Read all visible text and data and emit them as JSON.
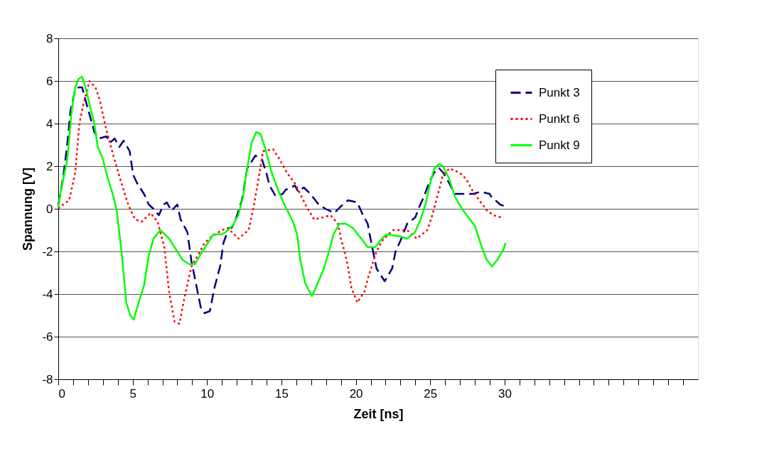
{
  "chart_data": {
    "type": "line",
    "xlabel": "Zeit [ns]",
    "ylabel": "Spannung [V]",
    "xlim": [
      0,
      43
    ],
    "xticks": [
      0,
      {
        "value": 1,
        "label": null
      },
      {
        "value": 2,
        "label": null
      },
      {
        "value": 3,
        "label": null
      },
      {
        "value": 4,
        "label": null
      },
      5,
      {
        "value": 6,
        "label": null
      },
      {
        "value": 7,
        "label": null
      },
      {
        "value": 8,
        "label": null
      },
      {
        "value": 9,
        "label": null
      },
      10,
      {
        "value": 11,
        "label": null
      },
      {
        "value": 12,
        "label": null
      },
      {
        "value": 13,
        "label": null
      },
      {
        "value": 14,
        "label": null
      },
      15,
      {
        "value": 16,
        "label": null
      },
      {
        "value": 17,
        "label": null
      },
      {
        "value": 18,
        "label": null
      },
      {
        "value": 19,
        "label": null
      },
      20,
      {
        "value": 21,
        "label": null
      },
      {
        "value": 22,
        "label": null
      },
      {
        "value": 23,
        "label": null
      },
      {
        "value": 24,
        "label": null
      },
      25,
      {
        "value": 26,
        "label": null
      },
      {
        "value": 27,
        "label": null
      },
      {
        "value": 28,
        "label": null
      },
      {
        "value": 29,
        "label": null
      },
      30,
      {
        "value": 31,
        "label": null
      },
      {
        "value": 32,
        "label": null
      },
      {
        "value": 33,
        "label": null
      },
      {
        "value": 34,
        "label": null
      },
      {
        "value": 35,
        "label": null
      },
      {
        "value": 36,
        "label": null
      },
      {
        "value": 37,
        "label": null
      },
      {
        "value": 38,
        "label": null
      },
      {
        "value": 39,
        "label": null
      },
      {
        "value": 40,
        "label": null
      },
      {
        "value": 41,
        "label": null
      },
      {
        "value": 42,
        "label": null
      }
    ],
    "ylim": [
      -8,
      8
    ],
    "yticks": [
      -8,
      -6,
      -4,
      -2,
      0,
      2,
      4,
      6,
      8
    ],
    "grid": "y",
    "legend": "top right",
    "marker": "none",
    "series": [
      {
        "name": "Punkt 3",
        "color": "#000080",
        "line_style": "dashed",
        "x": [
          0,
          0.14,
          0.37,
          0.6,
          0.82,
          1.14,
          1.37,
          1.6,
          1.83,
          2.19,
          2.42,
          2.74,
          3.24,
          3.47,
          3.79,
          4.1,
          4.39,
          4.8,
          5.03,
          5.3,
          5.76,
          6.08,
          6.4,
          6.76,
          7.08,
          7.3,
          7.6,
          8.0,
          8.22,
          8.68,
          8.96,
          9.28,
          9.6,
          9.83,
          10.19,
          10.5,
          10.88,
          11.1,
          11.47,
          11.65,
          11.93,
          12.34,
          12.7,
          13.25,
          13.7,
          13.98,
          14.2,
          14.6,
          15.08,
          15.3,
          15.68,
          15.9,
          16.13,
          16.5,
          16.95,
          17.5,
          17.96,
          18.55,
          18.97,
          19.47,
          20.1,
          20.48,
          20.8,
          20.93,
          21.16,
          21.39,
          21.94,
          22.44,
          22.67,
          23.0,
          23.45,
          24.0,
          24.27,
          24.6,
          24.9,
          25.27,
          25.6,
          25.87,
          26.28,
          26.64,
          27.24,
          27.88,
          28.38,
          29.0,
          29.07,
          29.7,
          30.07
        ],
        "values": [
          0.2,
          0.7,
          1.7,
          3.0,
          4.6,
          5.6,
          5.7,
          5.7,
          5.1,
          4.2,
          3.6,
          3.3,
          3.4,
          3.1,
          3.3,
          2.9,
          3.2,
          2.7,
          1.6,
          1.2,
          0.7,
          0.2,
          0.0,
          -0.3,
          0.2,
          0.3,
          -0.1,
          0.2,
          -0.5,
          -1.1,
          -2.5,
          -3.6,
          -4.7,
          -4.9,
          -4.8,
          -3.7,
          -2.7,
          -1.6,
          -0.9,
          -0.9,
          -0.5,
          0.4,
          1.9,
          2.5,
          2.3,
          1.7,
          1.1,
          0.6,
          0.7,
          0.9,
          1.0,
          1.1,
          0.8,
          1.0,
          0.7,
          0.2,
          0.0,
          -0.2,
          0.1,
          0.4,
          0.3,
          -0.3,
          -0.7,
          -1.2,
          -2.0,
          -2.8,
          -3.4,
          -2.8,
          -2.0,
          -1.5,
          -0.7,
          -0.4,
          0.1,
          0.6,
          1.2,
          1.7,
          1.9,
          1.7,
          1.2,
          0.7,
          0.7,
          0.7,
          0.8,
          0.7,
          0.6,
          0.2,
          0.1
        ]
      },
      {
        "name": "Punkt 6",
        "color": "#ff0000",
        "line_style": "dotted",
        "x": [
          0,
          0.14,
          0.73,
          1.14,
          1.42,
          1.65,
          2.1,
          2.5,
          2.79,
          3.2,
          3.7,
          4.16,
          4.7,
          5.16,
          5.62,
          6.2,
          6.67,
          7.13,
          7.45,
          7.82,
          8.14,
          8.5,
          8.96,
          9.37,
          9.83,
          10.33,
          11.0,
          11.4,
          12.1,
          12.8,
          13.16,
          13.48,
          13.76,
          14.44,
          14.9,
          15.36,
          15.9,
          16.27,
          16.68,
          17.2,
          17.82,
          18.3,
          18.8,
          19.0,
          19.24,
          19.47,
          19.7,
          20.1,
          20.57,
          20.84,
          21.16,
          21.39,
          21.76,
          22.5,
          23.45,
          24.1,
          24.8,
          25.1,
          25.37,
          25.6,
          25.82,
          26.28,
          26.96,
          27.42,
          27.8,
          28.3,
          28.84,
          29.25,
          29.75
        ],
        "values": [
          0.0,
          0.1,
          0.4,
          1.7,
          4.0,
          4.8,
          6.0,
          5.7,
          5.1,
          3.8,
          2.5,
          1.4,
          0.2,
          -0.5,
          -0.6,
          -0.2,
          -0.6,
          -1.8,
          -3.9,
          -5.3,
          -5.4,
          -4.1,
          -2.7,
          -2.2,
          -1.6,
          -1.3,
          -1.0,
          -0.9,
          -1.4,
          -1.0,
          0.2,
          1.5,
          2.7,
          2.8,
          2.3,
          1.7,
          1.2,
          0.7,
          0.1,
          -0.5,
          -0.4,
          -0.3,
          -0.7,
          -1.4,
          -2.0,
          -2.7,
          -3.7,
          -4.4,
          -3.9,
          -3.2,
          -2.5,
          -2.0,
          -1.5,
          -1.0,
          -1.0,
          -1.4,
          -1.0,
          -0.4,
          0.3,
          0.9,
          1.5,
          1.9,
          1.7,
          1.4,
          0.9,
          0.4,
          -0.1,
          -0.3,
          -0.4
        ]
      },
      {
        "name": "Punkt 9",
        "color": "#00ff00",
        "line_style": "solid",
        "x": [
          0,
          0.14,
          0.6,
          0.9,
          1.14,
          1.37,
          1.6,
          1.83,
          2.1,
          2.42,
          2.65,
          2.97,
          3.34,
          3.7,
          3.93,
          4.25,
          4.57,
          4.84,
          5.07,
          5.4,
          5.76,
          6.08,
          6.4,
          6.86,
          7.45,
          7.9,
          8.36,
          8.8,
          9.19,
          9.6,
          10.05,
          10.42,
          10.97,
          11.24,
          11.7,
          12.1,
          12.4,
          12.7,
          13.0,
          13.3,
          13.6,
          13.93,
          14.3,
          14.76,
          15.2,
          15.77,
          16.05,
          16.27,
          16.6,
          17.05,
          17.37,
          17.8,
          18.2,
          18.5,
          18.9,
          19.33,
          19.8,
          20.25,
          20.8,
          21.3,
          21.76,
          22.07,
          23.0,
          23.45,
          23.98,
          24.35,
          24.68,
          24.96,
          25.27,
          25.6,
          25.87,
          26.28,
          26.64,
          26.96,
          27.24,
          28.0,
          28.47,
          28.8,
          29.16,
          29.5,
          29.93,
          30.07
        ],
        "values": [
          0.1,
          0.7,
          2.3,
          4.6,
          5.7,
          6.1,
          6.2,
          5.7,
          4.9,
          4.0,
          2.9,
          2.4,
          1.4,
          0.6,
          -0.1,
          -2.0,
          -4.4,
          -5.0,
          -5.2,
          -4.4,
          -3.6,
          -2.2,
          -1.4,
          -1.0,
          -1.4,
          -1.9,
          -2.4,
          -2.6,
          -2.6,
          -2.1,
          -1.6,
          -1.2,
          -1.2,
          -1.1,
          -0.8,
          -0.3,
          0.5,
          1.9,
          3.1,
          3.6,
          3.5,
          2.8,
          1.8,
          0.9,
          0.2,
          -0.6,
          -1.2,
          -2.4,
          -3.5,
          -4.1,
          -3.6,
          -2.9,
          -2.0,
          -1.2,
          -0.7,
          -0.7,
          -0.9,
          -1.3,
          -1.8,
          -1.8,
          -1.4,
          -1.2,
          -1.3,
          -1.4,
          -1.1,
          -0.5,
          0.2,
          1.1,
          1.9,
          2.1,
          2.0,
          1.4,
          0.6,
          0.2,
          -0.1,
          -0.8,
          -1.8,
          -2.4,
          -2.7,
          -2.4,
          -1.9,
          -1.6
        ]
      }
    ]
  }
}
